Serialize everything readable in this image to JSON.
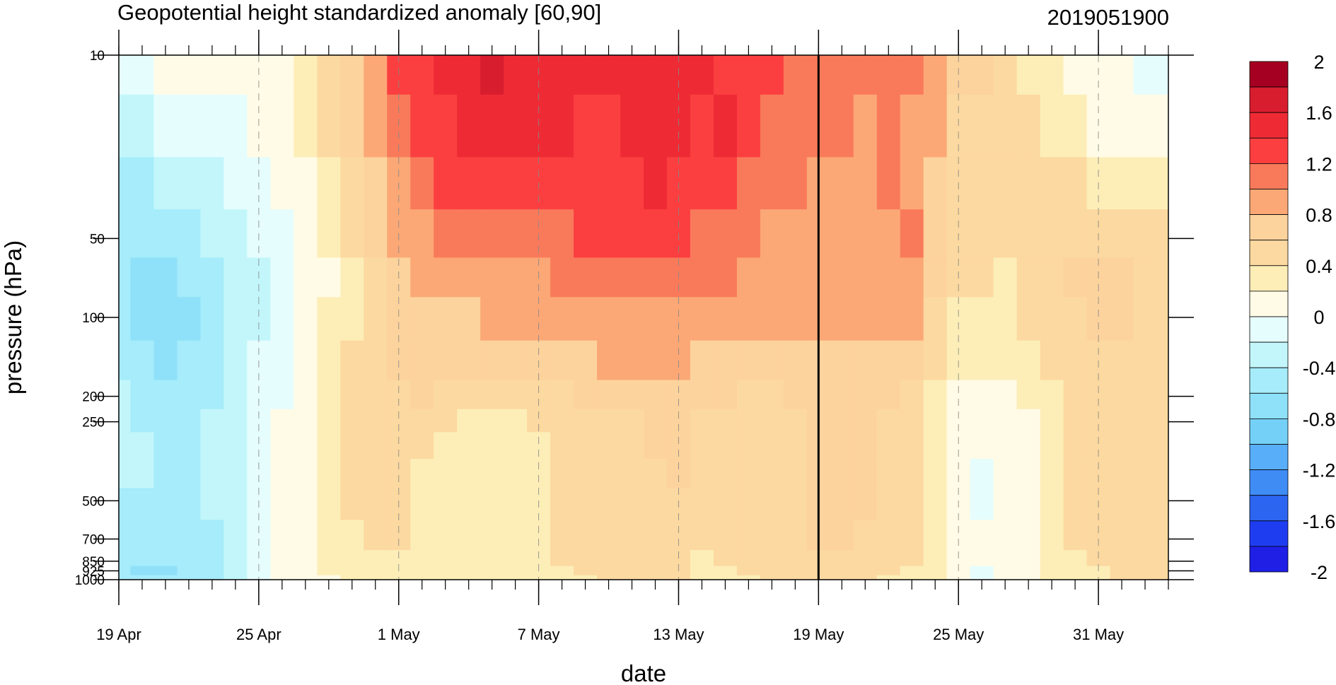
{
  "chart_data": {
    "type": "heatmap",
    "title": "Geopotential height standardized anomaly [60,90]",
    "run_label": "2019051900",
    "xlabel": "date",
    "ylabel": "pressure (hPa)",
    "y_scale": "log",
    "y_reversed": true,
    "xlim": [
      "2019-04-19",
      "2019-06-03"
    ],
    "ylim": [
      1000,
      10
    ],
    "x_ticks": [
      {
        "date": "2019-04-19",
        "label": "19 Apr"
      },
      {
        "date": "2019-04-25",
        "label": "25 Apr"
      },
      {
        "date": "2019-05-01",
        "label": "1 May"
      },
      {
        "date": "2019-05-07",
        "label": "7 May"
      },
      {
        "date": "2019-05-13",
        "label": "13 May"
      },
      {
        "date": "2019-05-19",
        "label": "19 May"
      },
      {
        "date": "2019-05-25",
        "label": "25 May"
      },
      {
        "date": "2019-05-31",
        "label": "31 May"
      }
    ],
    "y_ticks": [
      {
        "value": 10,
        "label": "10"
      },
      {
        "value": 50,
        "label": "50"
      },
      {
        "value": 100,
        "label": "100"
      },
      {
        "value": 200,
        "label": "200"
      },
      {
        "value": 250,
        "label": "250"
      },
      {
        "value": 500,
        "label": "500"
      },
      {
        "value": 700,
        "label": "700"
      },
      {
        "value": 850,
        "label": "850"
      },
      {
        "value": 925,
        "label": "925"
      },
      {
        "value": 1000,
        "label": "1000"
      }
    ],
    "current_date_line": "2019-05-19",
    "grid": "dashed vertical lines at date ticks",
    "colorbar": {
      "position": "right",
      "levels": [
        2,
        1.8,
        1.6,
        1.4,
        1.2,
        1.0,
        0.8,
        0.6,
        0.4,
        0.2,
        0,
        -0.2,
        -0.4,
        -0.6,
        -0.8,
        -1.0,
        -1.2,
        -1.4,
        -1.6,
        -1.8,
        -2
      ],
      "labels": [
        {
          "level": 2,
          "text": "2"
        },
        {
          "level": 1.6,
          "text": "1.6"
        },
        {
          "level": 1.2,
          "text": "1.2"
        },
        {
          "level": 0.8,
          "text": "0.8"
        },
        {
          "level": 0.4,
          "text": "0.4"
        },
        {
          "level": 0,
          "text": "0"
        },
        {
          "level": -0.4,
          "text": "-0.4"
        },
        {
          "level": -0.8,
          "text": "-0.8"
        },
        {
          "level": -1.2,
          "text": "-1.2"
        },
        {
          "level": -1.6,
          "text": "-1.6"
        },
        {
          "level": -2,
          "text": "-2"
        }
      ],
      "colors": [
        "#a50021",
        "#d81d2e",
        "#ee2b35",
        "#fb3f40",
        "#f97a5a",
        "#fba876",
        "#fdd39d",
        "#fcd9a0",
        "#fdeeb8",
        "#fffbe6",
        "#e6fdfd",
        "#c2f6fb",
        "#a6ecfa",
        "#8fe0f9",
        "#75d0f7",
        "#59aef9",
        "#3f8cf5",
        "#2c65f0",
        "#1f3df0",
        "#1f1fe6"
      ]
    },
    "x_days": [
      0,
      1,
      2,
      3,
      4,
      5,
      6,
      7,
      8,
      9,
      10,
      11,
      12,
      13,
      14,
      15,
      16,
      17,
      18,
      19,
      20,
      21,
      22,
      23,
      24,
      25,
      26,
      27,
      28,
      29,
      30,
      31,
      32,
      33,
      34,
      35,
      36,
      37,
      38,
      39,
      40,
      41,
      42,
      43,
      44,
      45
    ],
    "pressure_levels": [
      10,
      20,
      30,
      50,
      70,
      100,
      150,
      200,
      250,
      300,
      400,
      500,
      700,
      850,
      925,
      1000
    ],
    "values": [
      [
        -0.1,
        -0.3,
        -0.4,
        -0.45,
        -0.5,
        -0.45,
        -0.4,
        -0.35,
        -0.3,
        -0.3,
        -0.35,
        -0.45,
        -0.4,
        -0.5,
        -0.55,
        -0.45
      ],
      [
        -0.15,
        -0.35,
        -0.5,
        -0.55,
        -0.65,
        -0.65,
        -0.55,
        -0.45,
        -0.4,
        -0.35,
        -0.35,
        -0.4,
        -0.45,
        -0.55,
        -0.6,
        -0.55
      ],
      [
        0.1,
        -0.05,
        -0.25,
        -0.45,
        -0.6,
        -0.7,
        -0.65,
        -0.55,
        -0.45,
        -0.4,
        -0.4,
        -0.4,
        -0.45,
        -0.5,
        -0.6,
        -0.55
      ],
      [
        0.05,
        -0.05,
        -0.2,
        -0.4,
        -0.55,
        -0.6,
        -0.55,
        -0.5,
        -0.45,
        -0.4,
        -0.4,
        -0.4,
        -0.4,
        -0.45,
        -0.5,
        -0.5
      ],
      [
        0.05,
        -0.05,
        -0.2,
        -0.35,
        -0.45,
        -0.5,
        -0.45,
        -0.4,
        -0.35,
        -0.35,
        -0.35,
        -0.35,
        -0.4,
        -0.45,
        -0.5,
        -0.45
      ],
      [
        0.05,
        -0.05,
        -0.15,
        -0.3,
        -0.35,
        -0.35,
        -0.3,
        -0.3,
        -0.25,
        -0.25,
        -0.25,
        -0.25,
        -0.25,
        -0.3,
        -0.3,
        -0.3
      ],
      [
        0.1,
        0.05,
        0,
        -0.15,
        -0.2,
        -0.2,
        -0.15,
        -0.1,
        -0.1,
        -0.05,
        -0.1,
        -0.1,
        -0.15,
        -0.1,
        -0.05,
        -0.05
      ],
      [
        0.2,
        0.15,
        0.1,
        0,
        -0.05,
        -0.05,
        -0.05,
        0,
        0.05,
        0.05,
        0.05,
        0.05,
        0.05,
        0.1,
        0.05,
        0.05
      ],
      [
        0.3,
        0.25,
        0.2,
        0.1,
        0.05,
        0.05,
        0.1,
        0.1,
        0.15,
        0.15,
        0.15,
        0.15,
        0.15,
        0.2,
        0.15,
        0.15
      ],
      [
        0.5,
        0.45,
        0.4,
        0.3,
        0.2,
        0.25,
        0.3,
        0.3,
        0.35,
        0.35,
        0.35,
        0.35,
        0.3,
        0.3,
        0.25,
        0.2
      ],
      [
        0.8,
        0.7,
        0.6,
        0.5,
        0.4,
        0.4,
        0.45,
        0.5,
        0.5,
        0.5,
        0.5,
        0.45,
        0.4,
        0.35,
        0.3,
        0.25
      ],
      [
        1.0,
        0.9,
        0.8,
        0.7,
        0.6,
        0.6,
        0.6,
        0.6,
        0.6,
        0.55,
        0.5,
        0.5,
        0.45,
        0.4,
        0.35,
        0.3
      ],
      [
        1.25,
        1.15,
        1.0,
        0.85,
        0.75,
        0.7,
        0.65,
        0.6,
        0.6,
        0.55,
        0.5,
        0.5,
        0.45,
        0.4,
        0.35,
        0.3
      ],
      [
        1.4,
        1.3,
        1.2,
        1.0,
        0.85,
        0.75,
        0.7,
        0.65,
        0.55,
        0.45,
        0.4,
        0.35,
        0.3,
        0.3,
        0.25,
        0.25
      ],
      [
        1.5,
        1.4,
        1.3,
        1.1,
        0.9,
        0.8,
        0.7,
        0.6,
        0.45,
        0.35,
        0.3,
        0.3,
        0.3,
        0.3,
        0.3,
        0.3
      ],
      [
        1.55,
        1.45,
        1.3,
        1.1,
        0.95,
        0.8,
        0.7,
        0.55,
        0.4,
        0.35,
        0.3,
        0.3,
        0.3,
        0.3,
        0.3,
        0.3
      ],
      [
        1.65,
        1.5,
        1.35,
        1.15,
        1.0,
        0.85,
        0.7,
        0.55,
        0.4,
        0.35,
        0.3,
        0.3,
        0.3,
        0.3,
        0.3,
        0.3
      ],
      [
        1.6,
        1.5,
        1.35,
        1.15,
        1.0,
        0.85,
        0.7,
        0.55,
        0.4,
        0.35,
        0.35,
        0.35,
        0.35,
        0.3,
        0.3,
        0.3
      ],
      [
        1.55,
        1.45,
        1.35,
        1.15,
        1.0,
        0.9,
        0.75,
        0.6,
        0.45,
        0.4,
        0.4,
        0.4,
        0.4,
        0.35,
        0.35,
        0.3
      ],
      [
        1.5,
        1.45,
        1.3,
        1.2,
        1.05,
        0.9,
        0.75,
        0.6,
        0.45,
        0.45,
        0.45,
        0.45,
        0.45,
        0.45,
        0.4,
        0.4
      ],
      [
        1.45,
        1.4,
        1.35,
        1.25,
        1.1,
        0.95,
        0.8,
        0.65,
        0.5,
        0.5,
        0.5,
        0.5,
        0.5,
        0.5,
        0.45,
        0.4
      ],
      [
        1.45,
        1.4,
        1.35,
        1.25,
        1.15,
        1.0,
        0.85,
        0.65,
        0.55,
        0.55,
        0.55,
        0.5,
        0.5,
        0.55,
        0.5,
        0.45
      ],
      [
        1.45,
        1.45,
        1.4,
        1.3,
        1.2,
        1.0,
        0.85,
        0.7,
        0.6,
        0.6,
        0.6,
        0.55,
        0.55,
        0.6,
        0.55,
        0.5
      ],
      [
        1.45,
        1.45,
        1.45,
        1.35,
        1.2,
        1.0,
        0.85,
        0.7,
        0.65,
        0.65,
        0.6,
        0.55,
        0.55,
        0.6,
        0.6,
        0.5
      ],
      [
        1.45,
        1.45,
        1.35,
        1.25,
        1.15,
        1.0,
        0.85,
        0.7,
        0.65,
        0.7,
        0.7,
        0.6,
        0.55,
        0.55,
        0.5,
        0.45
      ],
      [
        1.45,
        1.4,
        1.25,
        1.2,
        1.1,
        0.95,
        0.8,
        0.7,
        0.6,
        0.55,
        0.5,
        0.45,
        0.45,
        0.4,
        0.35,
        0.35
      ],
      [
        1.4,
        1.55,
        1.4,
        1.2,
        1.05,
        0.95,
        0.8,
        0.65,
        0.6,
        0.6,
        0.55,
        0.45,
        0.45,
        0.45,
        0.4,
        0.4
      ],
      [
        1.4,
        1.3,
        1.2,
        1.1,
        1.0,
        0.9,
        0.75,
        0.6,
        0.55,
        0.55,
        0.55,
        0.5,
        0.5,
        0.5,
        0.45,
        0.4
      ],
      [
        1.35,
        1.2,
        1.1,
        1.0,
        0.95,
        0.85,
        0.7,
        0.6,
        0.55,
        0.55,
        0.5,
        0.5,
        0.55,
        0.55,
        0.55,
        0.5
      ],
      [
        1.2,
        1.15,
        1.05,
        1.0,
        0.9,
        0.85,
        0.75,
        0.65,
        0.6,
        0.6,
        0.6,
        0.6,
        0.6,
        0.6,
        0.6,
        0.55
      ],
      [
        1.15,
        1.05,
        1.0,
        1.0,
        0.9,
        0.85,
        0.75,
        0.7,
        0.65,
        0.65,
        0.65,
        0.65,
        0.65,
        0.6,
        0.6,
        0.55
      ],
      [
        1.1,
        1.05,
        1.0,
        0.95,
        0.9,
        0.85,
        0.75,
        0.7,
        0.65,
        0.65,
        0.7,
        0.7,
        0.7,
        0.6,
        0.55,
        0.5
      ],
      [
        1.1,
        1.0,
        1.0,
        0.95,
        0.9,
        0.85,
        0.75,
        0.65,
        0.65,
        0.65,
        0.7,
        0.7,
        0.6,
        0.55,
        0.5,
        0.45
      ],
      [
        1.1,
        1.05,
        1.05,
        1.0,
        0.95,
        0.9,
        0.8,
        0.7,
        0.6,
        0.6,
        0.6,
        0.6,
        0.55,
        0.5,
        0.45,
        0.4
      ],
      [
        1.05,
        1.0,
        1.0,
        1.05,
        1.0,
        0.9,
        0.75,
        0.6,
        0.55,
        0.5,
        0.5,
        0.45,
        0.45,
        0.45,
        0.4,
        0.4
      ],
      [
        0.95,
        0.85,
        0.8,
        0.8,
        0.7,
        0.6,
        0.5,
        0.4,
        0.3,
        0.3,
        0.3,
        0.3,
        0.35,
        0.35,
        0.3,
        0.3
      ],
      [
        0.8,
        0.6,
        0.5,
        0.5,
        0.45,
        0.4,
        0.3,
        0.15,
        0.05,
        0.05,
        0.05,
        0.05,
        0.1,
        0.1,
        0.05,
        0.05
      ],
      [
        0.7,
        0.5,
        0.45,
        0.45,
        0.45,
        0.35,
        0.25,
        0.1,
        0.05,
        0.05,
        0,
        0,
        0.05,
        0.05,
        -0.05,
        -0.1
      ],
      [
        0.55,
        0.45,
        0.45,
        0.45,
        0.4,
        0.35,
        0.25,
        0.15,
        0.1,
        0.1,
        0.1,
        0.1,
        0.1,
        0.1,
        0.05,
        0.05
      ],
      [
        0.4,
        0.45,
        0.45,
        0.45,
        0.45,
        0.45,
        0.3,
        0.25,
        0.2,
        0.2,
        0.2,
        0.2,
        0.2,
        0.15,
        0.15,
        0.15
      ],
      [
        0.3,
        0.35,
        0.45,
        0.55,
        0.6,
        0.55,
        0.45,
        0.4,
        0.4,
        0.4,
        0.4,
        0.4,
        0.35,
        0.3,
        0.25,
        0.25
      ],
      [
        0.15,
        0.25,
        0.45,
        0.6,
        0.65,
        0.6,
        0.55,
        0.5,
        0.5,
        0.5,
        0.5,
        0.5,
        0.45,
        0.4,
        0.35,
        0.3
      ],
      [
        0.1,
        0.2,
        0.4,
        0.6,
        0.65,
        0.65,
        0.6,
        0.55,
        0.55,
        0.55,
        0.55,
        0.55,
        0.5,
        0.45,
        0.4,
        0.4
      ],
      [
        0.05,
        0.15,
        0.35,
        0.55,
        0.65,
        0.65,
        0.6,
        0.55,
        0.55,
        0.55,
        0.55,
        0.55,
        0.55,
        0.5,
        0.45,
        0.45
      ],
      [
        0,
        0.1,
        0.3,
        0.5,
        0.6,
        0.6,
        0.55,
        0.55,
        0.55,
        0.55,
        0.55,
        0.55,
        0.6,
        0.5,
        0.45,
        0.45
      ],
      [
        -0.05,
        0.05,
        0.25,
        0.45,
        0.55,
        0.55,
        0.55,
        0.5,
        0.5,
        0.5,
        0.5,
        0.5,
        0.55,
        0.5,
        0.45,
        0.45
      ]
    ]
  }
}
